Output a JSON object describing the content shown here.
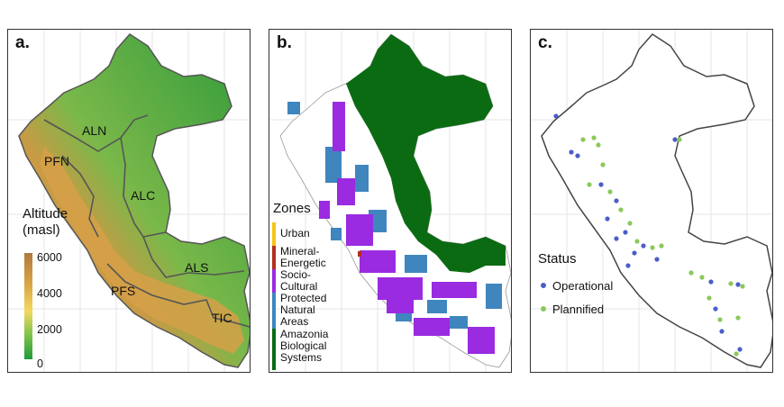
{
  "panels": {
    "a": {
      "label": "a.",
      "regions": [
        "ALN",
        "PFN",
        "ALC",
        "ALS",
        "PFS",
        "TIC"
      ],
      "legend": {
        "title": "Altitude\n(masl)",
        "ticks": [
          "6000",
          "4000",
          "2000",
          "0"
        ],
        "colors": [
          "#b07840",
          "#d9a844",
          "#f2d860",
          "#7ac24a",
          "#1f9b3a"
        ]
      }
    },
    "b": {
      "label": "b.",
      "legend_title": "Zones",
      "zones": [
        {
          "label": "Urban",
          "color": "#f5c518"
        },
        {
          "label": "Mineral-\nEnergetic",
          "color": "#b03020"
        },
        {
          "label": "Socio-\nCultural",
          "color": "#9a2be0"
        },
        {
          "label": "Protected\nNatural\nAreas",
          "color": "#3f86bf"
        },
        {
          "label": "Amazonia\nBiological\nSystems",
          "color": "#0b6b12"
        }
      ]
    },
    "c": {
      "label": "c.",
      "legend_title": "Status",
      "statuses": [
        {
          "label": "Operational",
          "color": "#4a5ec9"
        },
        {
          "label": "Plannified",
          "color": "#8cc85a"
        }
      ]
    }
  }
}
